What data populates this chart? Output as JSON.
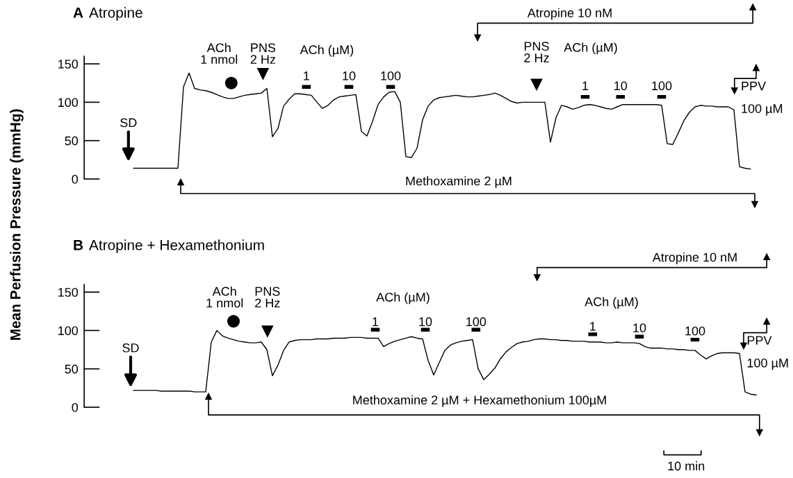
{
  "chart_data": [
    {
      "type": "line",
      "title": "A Atropine",
      "ylabel": "Mean Perfusion Pressure (mmHg)",
      "categories": [
        null,
        null,
        null,
        null,
        null,
        null,
        null,
        null,
        null,
        null,
        null,
        null,
        null,
        null,
        null,
        null,
        null,
        null,
        null,
        null,
        null,
        null,
        null,
        null,
        null,
        null,
        null,
        null,
        null,
        null,
        null,
        null,
        null,
        null,
        null,
        null,
        null,
        null,
        null,
        null,
        null,
        null,
        null,
        null,
        null,
        null,
        null,
        null,
        null,
        null,
        null,
        null,
        null,
        null,
        null,
        null,
        null,
        null,
        null,
        null,
        null,
        null,
        null,
        null,
        null,
        null,
        null,
        null,
        null,
        null,
        null,
        null,
        null,
        null,
        null,
        null,
        null,
        null,
        null,
        null,
        null,
        null,
        null,
        null,
        null,
        null,
        null,
        null,
        null,
        null,
        null,
        null,
        null,
        null,
        null,
        null,
        null,
        null,
        null,
        null,
        null,
        null,
        null,
        null,
        null,
        null,
        null,
        null,
        null,
        null,
        null,
        null,
        null
      ],
      "series": [
        {
          "color": "#000000",
          "values": [
            14,
            14,
            14,
            14,
            14,
            14,
            14,
            14,
            14,
            120,
            138,
            118,
            116,
            115,
            113,
            110,
            107,
            105,
            105,
            107,
            109,
            110,
            111,
            112,
            118,
            55,
            66,
            95,
            104,
            111,
            111,
            110,
            109,
            100,
            92,
            96,
            103,
            107,
            108,
            109,
            110,
            62,
            56,
            75,
            97,
            107,
            113,
            114,
            100,
            29,
            28,
            40,
            77,
            95,
            103,
            106,
            107,
            108,
            109,
            108,
            107,
            107,
            108,
            109,
            110,
            112,
            109,
            105,
            101,
            99,
            100,
            100,
            100,
            100,
            100,
            48,
            80,
            96,
            94,
            91,
            93,
            96,
            97,
            96,
            94,
            92,
            91,
            94,
            97,
            97,
            97,
            97,
            97,
            97,
            97,
            96,
            46,
            45,
            60,
            76,
            87,
            94,
            96,
            95,
            95,
            94,
            94,
            94,
            90,
            16,
            14,
            13,
            null
          ]
        }
      ],
      "ylim": [
        0,
        160
      ],
      "yticks": [
        0,
        50,
        100,
        150
      ],
      "tick_labels": "y",
      "annotations": [
        "SD",
        "ACh\n1 nmol",
        "PNS\n2 Hz",
        "ACh (µM)",
        "1",
        "10",
        "100",
        "Atropine 10 nM",
        "PNS\n2 Hz",
        "ACh (µM)",
        "1",
        "10",
        "100",
        "PPV\n100 µM",
        "Methoxamine 2 µM"
      ]
    },
    {
      "type": "line",
      "title": "B Atropine + Hexamethonium",
      "categories": [
        null,
        null,
        null,
        null,
        null,
        null,
        null,
        null,
        null,
        null,
        null,
        null,
        null,
        null,
        null,
        null,
        null,
        null,
        null,
        null,
        null,
        null,
        null,
        null,
        null,
        null,
        null,
        null,
        null,
        null,
        null,
        null,
        null,
        null,
        null,
        null,
        null,
        null,
        null,
        null,
        null,
        null,
        null,
        null,
        null,
        null,
        null,
        null,
        null,
        null,
        null,
        null,
        null,
        null,
        null,
        null,
        null,
        null,
        null,
        null,
        null,
        null,
        null,
        null,
        null,
        null,
        null,
        null,
        null,
        null,
        null,
        null,
        null,
        null,
        null,
        null,
        null,
        null,
        null,
        null,
        null,
        null,
        null,
        null,
        null,
        null,
        null,
        null,
        null,
        null,
        null,
        null,
        null,
        null,
        null,
        null,
        null,
        null,
        null,
        null,
        null,
        null,
        null,
        null,
        null,
        null,
        null,
        null,
        null,
        null,
        null,
        null,
        null
      ],
      "series": [
        {
          "color": "#000000",
          "values": [
            22,
            22,
            22,
            22,
            22,
            21,
            21,
            21,
            21,
            21,
            21,
            20,
            20,
            20,
            85,
            100,
            93,
            90,
            88,
            86,
            85,
            84,
            84,
            85,
            75,
            41,
            55,
            74,
            85,
            87,
            88,
            88,
            88,
            89,
            89,
            89,
            90,
            90,
            90,
            91,
            91,
            91,
            90,
            90,
            90,
            79,
            83,
            86,
            88,
            90,
            92,
            90,
            89,
            61,
            42,
            58,
            74,
            81,
            84,
            86,
            87,
            88,
            50,
            36,
            43,
            51,
            63,
            72,
            78,
            83,
            85,
            86,
            88,
            89,
            89,
            88,
            88,
            87,
            87,
            86,
            86,
            86,
            85,
            85,
            85,
            84,
            84,
            85,
            84,
            84,
            84,
            83,
            79,
            77,
            77,
            77,
            76,
            76,
            75,
            75,
            74,
            74,
            68,
            63,
            67,
            70,
            71,
            71,
            71,
            70,
            20,
            17,
            16
          ]
        }
      ],
      "ylim": [
        0,
        160
      ],
      "yticks": [
        0,
        50,
        100,
        150
      ],
      "tick_labels": "y",
      "annotations": [
        "SD",
        "ACh\n1 nmol",
        "PNS\n2 Hz",
        "ACh (µM)",
        "1",
        "10",
        "100",
        "Atropine 10 nM",
        "ACh (µM)",
        "1",
        "10",
        "100",
        "PPV\n100 µM",
        "Methoxamine 2 µM + Hexamethonium 100µM",
        "10 min"
      ]
    }
  ]
}
